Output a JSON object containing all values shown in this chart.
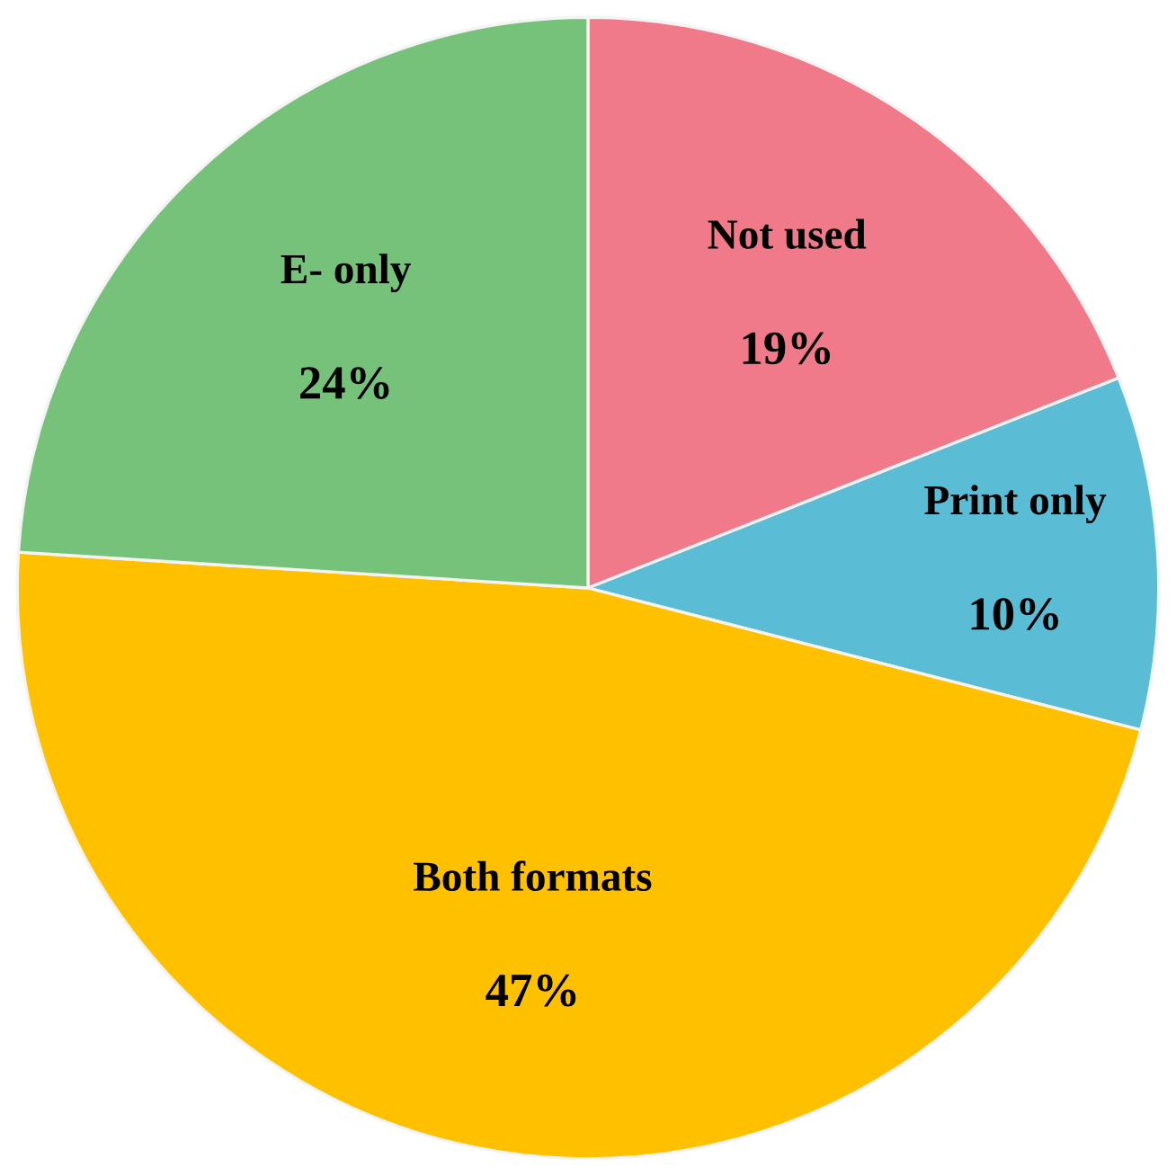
{
  "chart_data": {
    "type": "pie",
    "categories": [
      "Not used",
      "Print only",
      "Both formats",
      "E- only"
    ],
    "values": [
      19,
      10,
      47,
      24
    ],
    "value_labels": [
      "19%",
      "10%",
      "47%",
      "24%"
    ],
    "colors": [
      "#f07a8a",
      "#5bbcd6",
      "#ffc000",
      "#77c27a"
    ],
    "legend": false
  }
}
